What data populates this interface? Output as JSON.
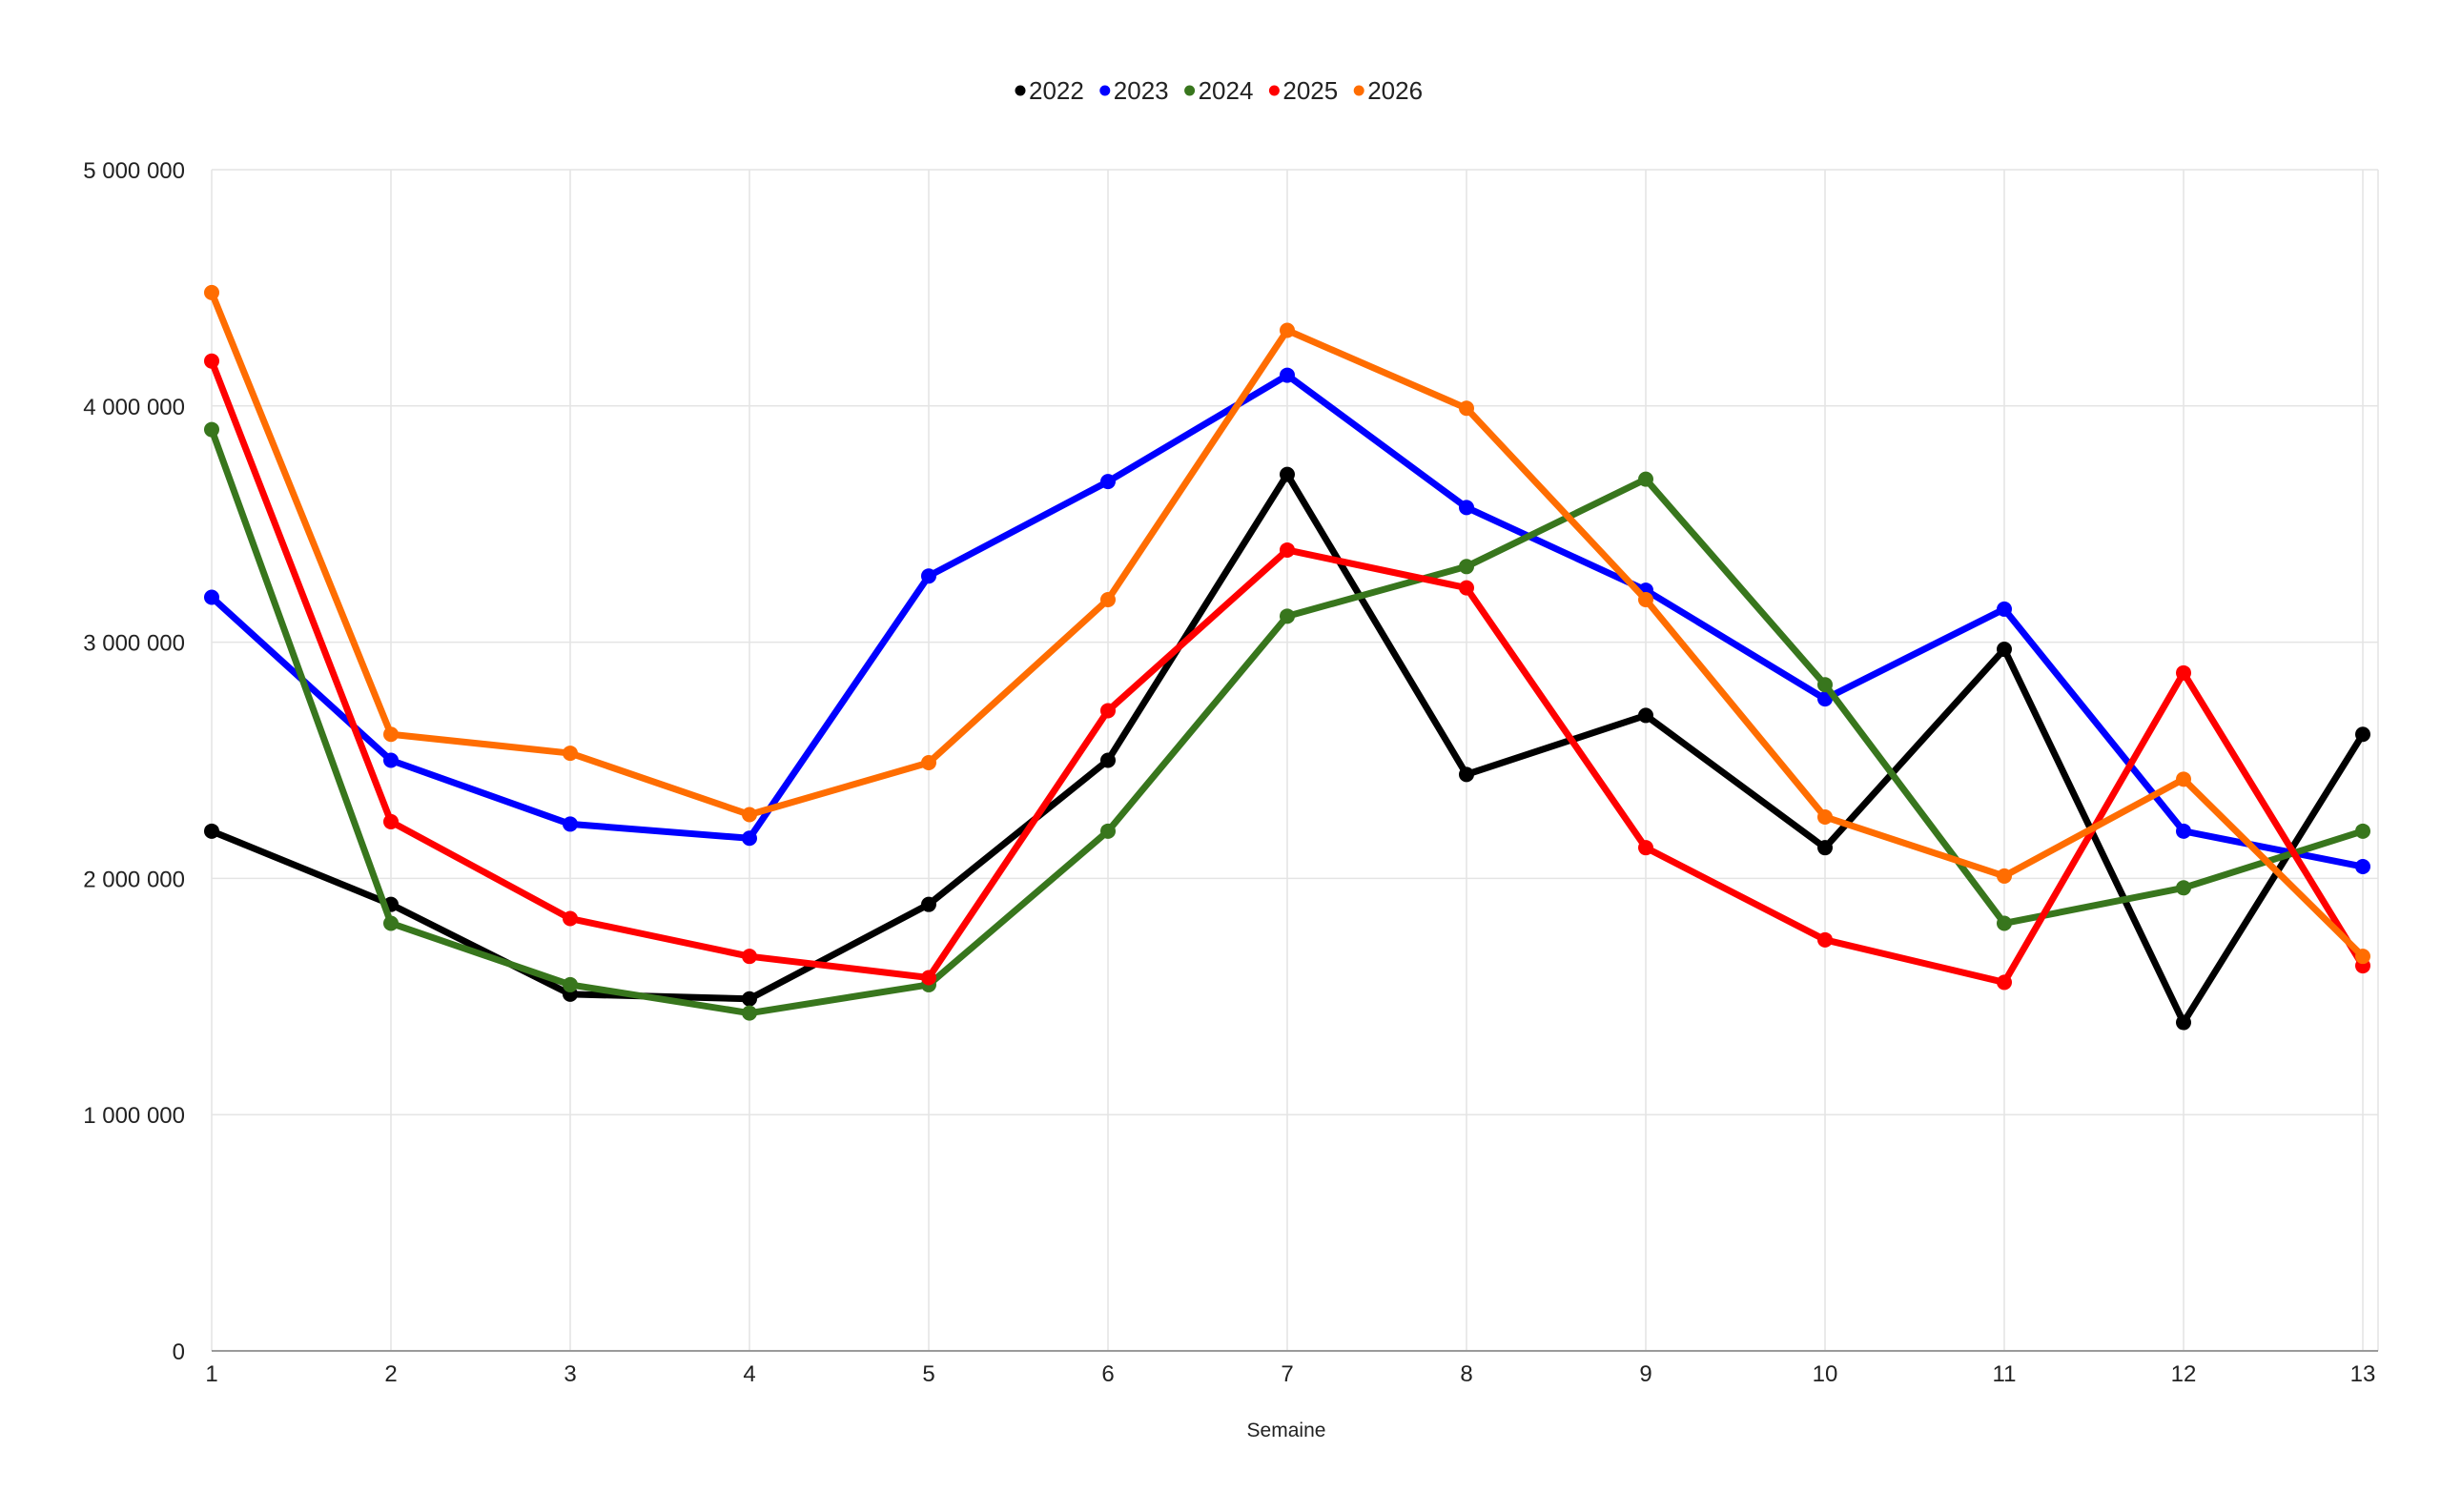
{
  "chart_data": {
    "type": "line",
    "title": "",
    "xlabel": "Semaine",
    "ylabel": "",
    "x": [
      1,
      2,
      3,
      4,
      5,
      6,
      7,
      8,
      9,
      10,
      11,
      12,
      13
    ],
    "ylim": [
      0,
      5000000
    ],
    "yticks": [
      0,
      1000000,
      2000000,
      3000000,
      4000000,
      5000000
    ],
    "ytick_labels": [
      "0",
      "1 000 000",
      "2 000 000",
      "3 000 000",
      "4 000 000",
      "5 000 000"
    ],
    "xtick_labels": [
      "1",
      "2",
      "3",
      "4",
      "5",
      "6",
      "7",
      "8",
      "9",
      "10",
      "11",
      "12",
      "13"
    ],
    "grid": true,
    "legend_position": "top-center",
    "series": [
      {
        "name": "2022",
        "color": "#000000",
        "values": [
          2200000,
          1890000,
          1510000,
          1490000,
          1890000,
          2500000,
          3710000,
          2440000,
          2690000,
          2130000,
          2970000,
          1390000,
          2610000
        ]
      },
      {
        "name": "2023",
        "color": "#0000ff",
        "values": [
          3190000,
          2500000,
          2230000,
          2170000,
          3280000,
          3680000,
          4130000,
          3570000,
          3220000,
          2760000,
          3140000,
          2200000,
          2050000
        ]
      },
      {
        "name": "2024",
        "color": "#38761d",
        "values": [
          3900000,
          1810000,
          1550000,
          1430000,
          1550000,
          2200000,
          3110000,
          3320000,
          3690000,
          2820000,
          1810000,
          1960000,
          2200000
        ]
      },
      {
        "name": "2025",
        "color": "#ff0000",
        "values": [
          4190000,
          2240000,
          1830000,
          1670000,
          1580000,
          2710000,
          3390000,
          3230000,
          2130000,
          1740000,
          1560000,
          2870000,
          1630000
        ]
      },
      {
        "name": "2026",
        "color": "#ff6d01",
        "values": [
          4480000,
          2610000,
          2530000,
          2270000,
          2490000,
          3180000,
          4320000,
          3990000,
          3180000,
          2260000,
          2010000,
          2420000,
          1670000
        ]
      }
    ]
  }
}
